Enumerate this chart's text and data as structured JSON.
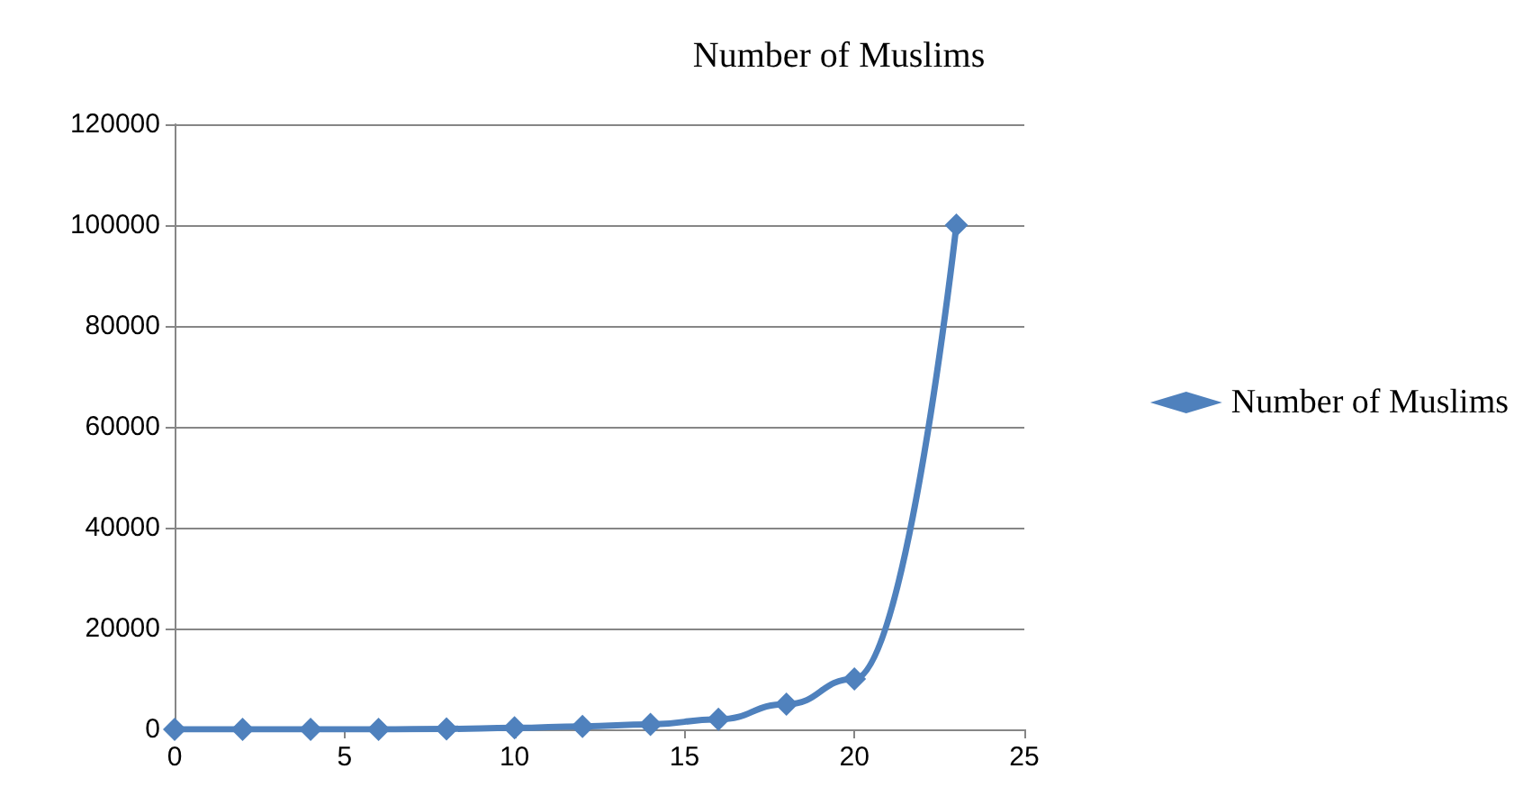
{
  "chart_data": {
    "type": "line",
    "title": "Number of Muslims",
    "x": [
      0,
      2,
      4,
      6,
      8,
      10,
      12,
      14,
      16,
      18,
      20,
      23
    ],
    "series": [
      {
        "name": "Number of Muslims",
        "color": "#4f81bd",
        "values": [
          0,
          0,
          0,
          0,
          100,
          300,
          600,
          1000,
          2000,
          5000,
          10000,
          100000
        ]
      }
    ],
    "xlim": [
      0,
      25
    ],
    "xticks": [
      0,
      5,
      10,
      15,
      20,
      25
    ],
    "ylim": [
      0,
      120000
    ],
    "yticks": [
      0,
      20000,
      40000,
      60000,
      80000,
      100000,
      120000
    ],
    "grid": "y",
    "legend": "right",
    "marker": "diamond",
    "line_style": "solid"
  }
}
